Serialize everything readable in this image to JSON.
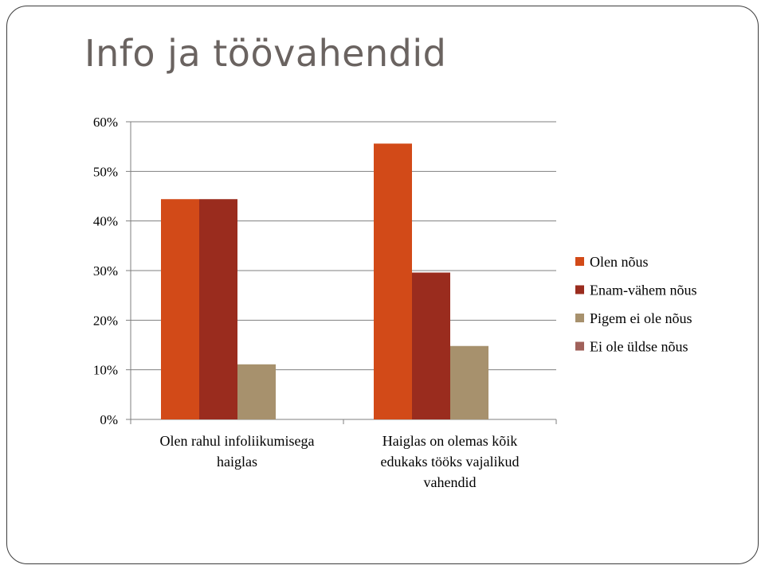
{
  "slide": {
    "title": "Info ja töövahendid"
  },
  "chart_data": {
    "type": "bar",
    "categories": [
      [
        "Olen rahul infoliikumisega",
        "haiglas"
      ],
      [
        "Haiglas on olemas kõik",
        "edukaks tööks vajalikud",
        "vahendid"
      ]
    ],
    "series": [
      {
        "name": "Olen nõus",
        "color": "#d24a18",
        "values": [
          0.444,
          0.556
        ]
      },
      {
        "name": "Enam-vähem nõus",
        "color": "#9a2c1e",
        "values": [
          0.444,
          0.296
        ]
      },
      {
        "name": "Pigem ei ole nõus",
        "color": "#a7916d",
        "values": [
          0.111,
          0.148
        ]
      },
      {
        "name": "Ei ole üldse nõus",
        "color": "#a0615a",
        "values": [
          0,
          0
        ]
      }
    ],
    "y_ticks": [
      "0%",
      "10%",
      "20%",
      "30%",
      "40%",
      "50%",
      "60%"
    ],
    "ylim": [
      0,
      0.6
    ],
    "grid": true,
    "legend_position": "right",
    "title": "",
    "xlabel": "",
    "ylabel": ""
  }
}
